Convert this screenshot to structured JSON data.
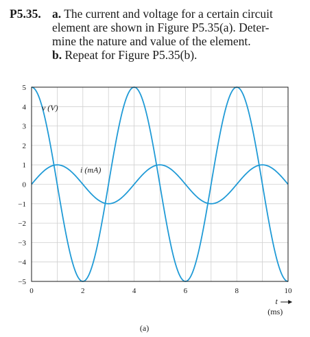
{
  "problem": {
    "number": "P5.35.",
    "part_a_label": "a.",
    "lines": [
      "The current and voltage for a certain circuit",
      "element are shown in Figure P5.35(a). Deter-",
      "mine the nature and value of the element."
    ],
    "part_b_label": "b.",
    "part_b_text": "Repeat for Figure P5.35(b)."
  },
  "figure_caption": "(a)",
  "chart_data": {
    "type": "line",
    "xlabel": "t",
    "xunit": "(ms)",
    "xlim": [
      0,
      10
    ],
    "ylim": [
      -5,
      5
    ],
    "x_ticks": [
      0,
      2,
      4,
      6,
      8,
      10
    ],
    "y_ticks": [
      5,
      4,
      3,
      2,
      1,
      0,
      -1,
      -2,
      -3,
      -4,
      -5
    ],
    "y_tick_labels": [
      "5",
      "4",
      "3",
      "2",
      "1",
      "0",
      "−1",
      "−2",
      "−3",
      "−4",
      "−5"
    ],
    "grid": true,
    "line_color": "#1f9ad6",
    "series": [
      {
        "name": "v (V)",
        "amplitude": 5,
        "period_ms": 4,
        "peak_at_ms": 0,
        "x": [
          0,
          0.5,
          1,
          1.5,
          2,
          2.5,
          3,
          3.5,
          4,
          4.5,
          5,
          5.5,
          6,
          6.5,
          7,
          7.5,
          8,
          8.5,
          9,
          9.5,
          10
        ],
        "y": [
          5,
          3.54,
          0,
          -3.54,
          -5,
          -3.54,
          0,
          3.54,
          5,
          3.54,
          0,
          -3.54,
          -5,
          -3.54,
          0,
          3.54,
          5,
          3.54,
          0,
          -3.54,
          -5
        ]
      },
      {
        "name": "i (mA)",
        "amplitude": 1,
        "period_ms": 4,
        "peak_at_ms": 1,
        "x": [
          0,
          0.5,
          1,
          1.5,
          2,
          2.5,
          3,
          3.5,
          4,
          4.5,
          5,
          5.5,
          6,
          6.5,
          7,
          7.5,
          8,
          8.5,
          9,
          9.5,
          10
        ],
        "y": [
          0,
          0.71,
          1,
          0.71,
          0,
          -0.71,
          -1,
          -0.71,
          0,
          0.71,
          1,
          0.71,
          0,
          -0.71,
          -1,
          -0.71,
          0,
          0.71,
          1,
          0.71,
          0
        ]
      }
    ]
  }
}
